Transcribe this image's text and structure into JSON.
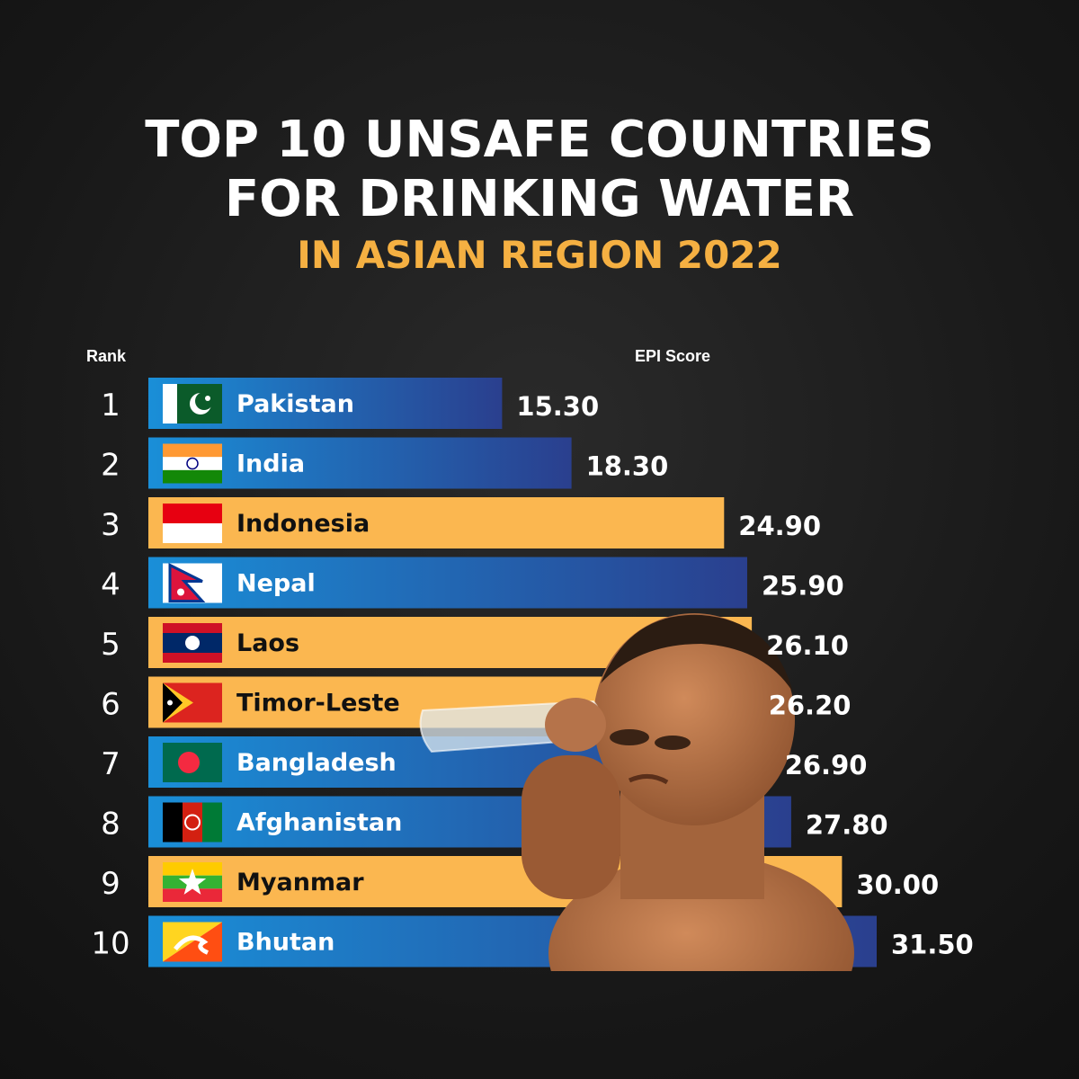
{
  "header": {
    "title_line1": "TOP 10 UNSAFE COUNTRIES",
    "title_line2": "FOR DRINKING WATER",
    "subtitle": "IN ASIAN REGION 2022"
  },
  "colors": {
    "blue_start": "#1a8fd8",
    "blue_end": "#2a3f8e",
    "orange": "#fbb750",
    "accent": "#f5b042"
  },
  "chart_data": {
    "type": "bar",
    "orientation": "horizontal",
    "rank_label": "Rank",
    "value_label": "EPI Score",
    "ranks": [
      "1",
      "2",
      "3",
      "4",
      "5",
      "6",
      "7",
      "8",
      "9",
      "10"
    ],
    "categories": [
      "Pakistan",
      "India",
      "Indonesia",
      "Nepal",
      "Laos",
      "Timor-Leste",
      "Bangladesh",
      "Afghanistan",
      "Myanmar",
      "Bhutan"
    ],
    "values": [
      15.3,
      18.3,
      24.9,
      25.9,
      26.1,
      26.2,
      26.9,
      27.8,
      30.0,
      31.5
    ],
    "value_labels": [
      "15.30",
      "18.30",
      "24.90",
      "25.90",
      "26.10",
      "26.20",
      "26.90",
      "27.80",
      "30.00",
      "31.50"
    ],
    "bar_styles": [
      "blue",
      "blue",
      "orange",
      "blue",
      "orange",
      "orange",
      "blue",
      "blue",
      "orange",
      "blue"
    ],
    "flag_icons": [
      "pakistan-flag-icon",
      "india-flag-icon",
      "indonesia-flag-icon",
      "nepal-flag-icon",
      "laos-flag-icon",
      "timor-leste-flag-icon",
      "bangladesh-flag-icon",
      "afghanistan-flag-icon",
      "myanmar-flag-icon",
      "bhutan-flag-icon"
    ],
    "xlim": [
      0,
      31.5
    ]
  }
}
